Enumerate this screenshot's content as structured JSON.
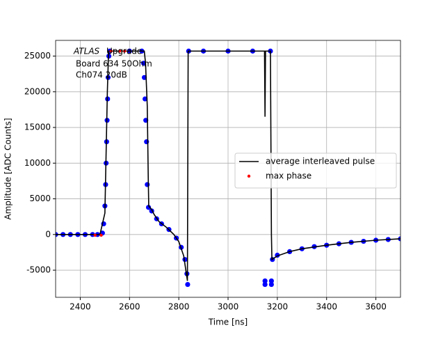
{
  "chart_data": {
    "type": "line",
    "xlabel": "Time [ns]",
    "ylabel": "Amplitude [ADC Counts]",
    "annotation": [
      "ATLAS",
      "Upgrade",
      "Board 634 50Ohm",
      "Ch074 20dB"
    ],
    "xlim": [
      2300,
      3700
    ],
    "xticks": [
      2400,
      2600,
      2800,
      3000,
      3200,
      3400,
      3600
    ],
    "ylim": [
      -8800,
      27200
    ],
    "yticks": [
      -5000,
      0,
      5000,
      10000,
      15000,
      20000,
      25000
    ],
    "grid": true,
    "legend": "center right",
    "series": [
      {
        "type": "scatter",
        "color": "#0000ff",
        "x": [
          2300,
          2330,
          2360,
          2390,
          2420,
          2450,
          2470,
          2490,
          2495,
          2500,
          2503,
          2505,
          2507,
          2509,
          2511,
          2513,
          2516,
          2520,
          2600,
          2650,
          2657,
          2660,
          2663,
          2666,
          2669,
          2672,
          2677,
          2690,
          2710,
          2730,
          2760,
          2790,
          2810,
          2825,
          2833,
          2836,
          2840,
          2900,
          3000,
          3100,
          3150,
          3150,
          3172,
          3176,
          3176,
          3180,
          3200,
          3250,
          3300,
          3350,
          3400,
          3450,
          3500,
          3550,
          3600,
          3650,
          3700
        ],
        "values": [
          0,
          0,
          0,
          0,
          0,
          0,
          0,
          200,
          1500,
          4000,
          7000,
          10000,
          13000,
          16000,
          19000,
          22000,
          25000,
          25700,
          25700,
          25700,
          24000,
          22000,
          19000,
          16000,
          13000,
          7000,
          3800,
          3300,
          2200,
          1500,
          700,
          -500,
          -1800,
          -3500,
          -5500,
          -7000,
          25700,
          25700,
          25700,
          25700,
          -6500,
          -7000,
          25700,
          -6500,
          -7000,
          -3500,
          -2900,
          -2400,
          -2000,
          -1700,
          -1500,
          -1300,
          -1100,
          -950,
          -800,
          -700,
          -600
        ]
      },
      {
        "type": "line",
        "name": "average interleaved pulse",
        "color": "#000000",
        "x": [
          2300,
          2480,
          2500,
          2510,
          2515,
          2660,
          2665,
          2672,
          2676,
          2678,
          2690,
          2700,
          2720,
          2750,
          2780,
          2800,
          2820,
          2835,
          2838,
          3148,
          3150,
          3152,
          3172,
          3176,
          3178,
          3200,
          3250,
          3300,
          3400,
          3500,
          3600,
          3700
        ],
        "values": [
          0,
          0,
          3000,
          20000,
          25700,
          25700,
          24000,
          18000,
          8000,
          4000,
          3500,
          2800,
          1800,
          1000,
          0,
          -1000,
          -3000,
          -6500,
          25700,
          25700,
          16500,
          25700,
          25700,
          0,
          -3500,
          -3000,
          -2400,
          -2000,
          -1500,
          -1100,
          -800,
          -600
        ]
      },
      {
        "type": "scatter",
        "name": "max phase",
        "color": "#ff0000",
        "x": [
          2460,
          2485,
          2525,
          2560,
          2580
        ],
        "values": [
          -100,
          -100,
          25700,
          25700,
          25700
        ]
      }
    ]
  }
}
